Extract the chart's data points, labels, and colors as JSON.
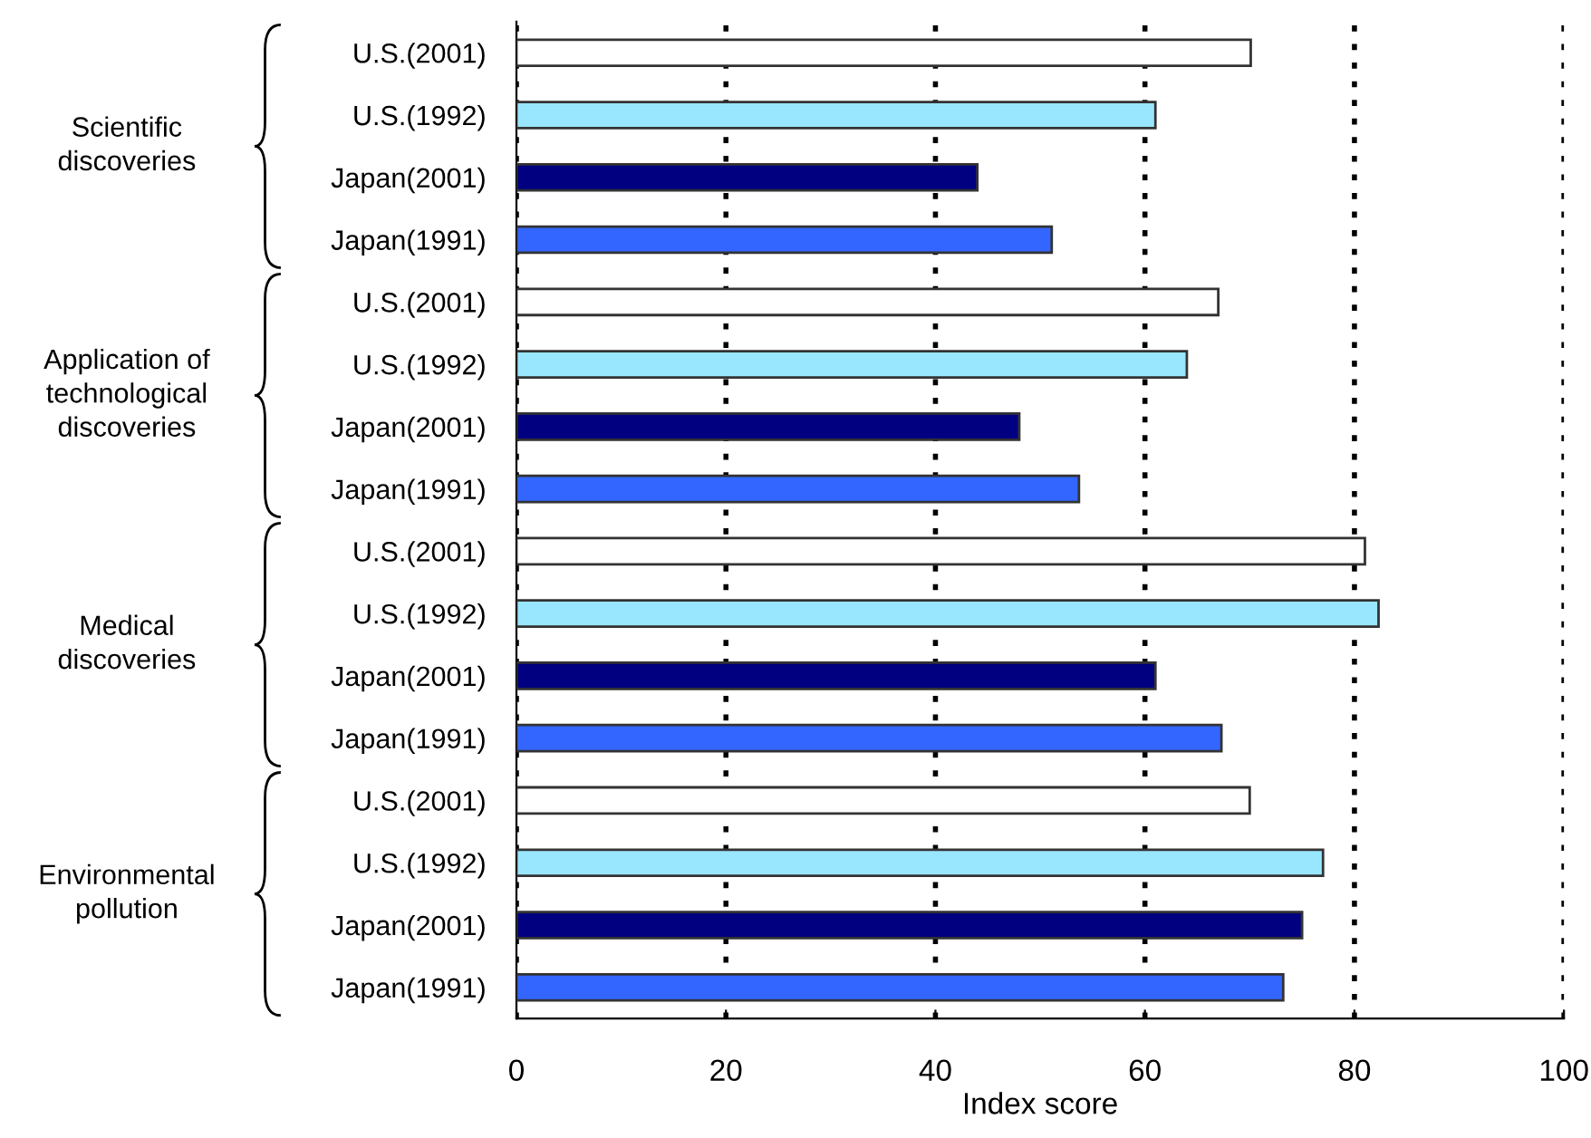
{
  "chart_data": {
    "type": "bar",
    "orientation": "horizontal",
    "categories": [
      "U.S.(2001)",
      "U.S.(1992)",
      "Japan(2001)",
      "Japan(1991)",
      "U.S.(2001)",
      "U.S.(1992)",
      "Japan(2001)",
      "Japan(1991)",
      "U.S.(2001)",
      "U.S.(1992)",
      "Japan(2001)",
      "Japan(1991)",
      "U.S.(2001)",
      "U.S.(1992)",
      "Japan(2001)",
      "Japan(1991)"
    ],
    "values": [
      70.1,
      61.0,
      44.0,
      51.1,
      67.0,
      64.0,
      48.0,
      53.7,
      81.0,
      82.3,
      61.0,
      67.3,
      70.0,
      77.0,
      75.0,
      73.2
    ],
    "colors": [
      "#ffffff",
      "#99e6ff",
      "#000080",
      "#3366ff",
      "#ffffff",
      "#99e6ff",
      "#000080",
      "#3366ff",
      "#ffffff",
      "#99e6ff",
      "#000080",
      "#3366ff",
      "#ffffff",
      "#99e6ff",
      "#000080",
      "#3366ff"
    ],
    "xlim": [
      0,
      100
    ],
    "xticks": [
      0,
      20,
      40,
      60,
      80,
      100
    ],
    "xlabel": "Index score",
    "grid": "x",
    "line_style": "dotted",
    "annotations": [
      "Scientific\ndiscoveries",
      "Application of\ntechnological\ndiscoveries",
      "Medical\ndiscoveries",
      "Environmental\npollution"
    ]
  }
}
